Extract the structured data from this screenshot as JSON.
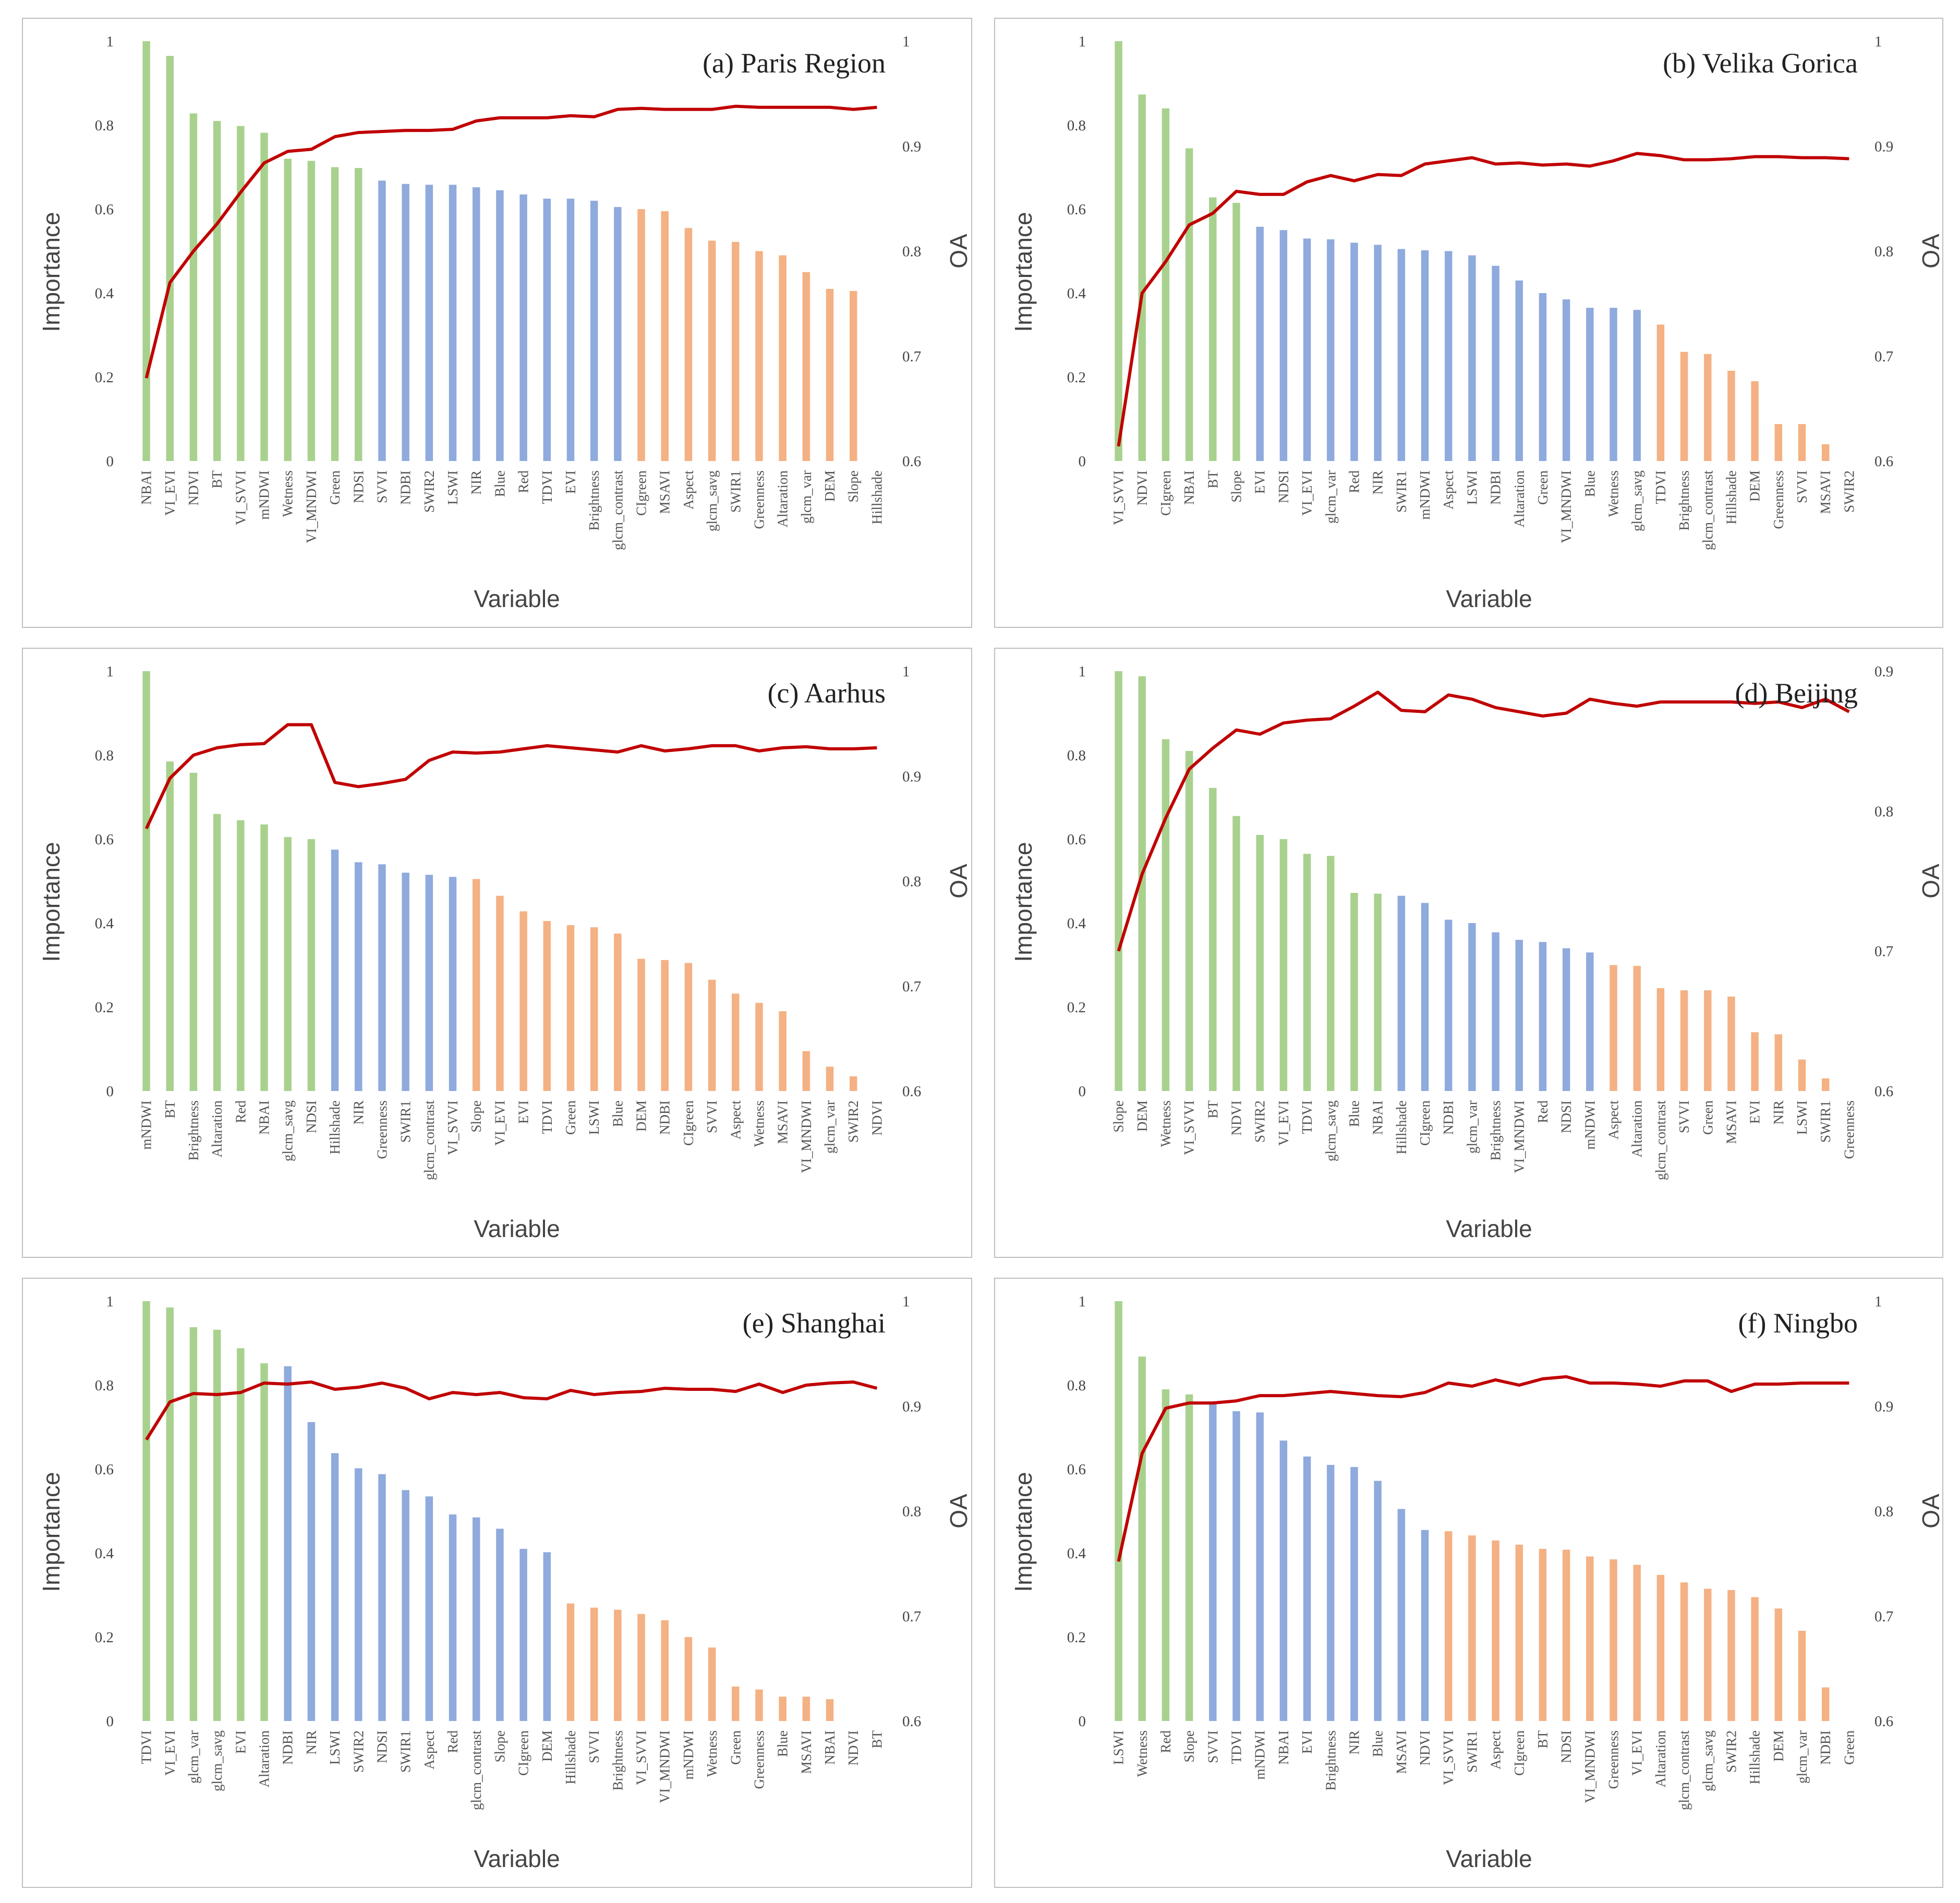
{
  "colors": {
    "group1": "#a9d18e",
    "group2": "#8faadc",
    "group3": "#f4b183",
    "oa_line": "#c00000",
    "frame": "#bfbfbf"
  },
  "chart_data": [
    {
      "type": "bar",
      "title": "(a) Paris Region",
      "xlabel": "Variable",
      "ylabel": "Importance",
      "y2label": "OA",
      "ylim": [
        0,
        1
      ],
      "y2lim": [
        0.6,
        1
      ],
      "yticks": [
        "0",
        "0.2",
        "0.4",
        "0.6",
        "0.8",
        "1"
      ],
      "y2ticks": [
        "0.6",
        "0.7",
        "0.8",
        "0.9",
        "1"
      ],
      "categories": [
        "NBAI",
        "VI_EVI",
        "NDVI",
        "BT",
        "VI_SVVI",
        "mNDWI",
        "Wetness",
        "VI_MNDWI",
        "Green",
        "NDSI",
        "SVVI",
        "NDBI",
        "SWIR2",
        "LSWI",
        "NIR",
        "Blue",
        "Red",
        "TDVI",
        "EVI",
        "Brightness",
        "glcm_contrast",
        "CIgreen",
        "MSAVI",
        "Aspect",
        "glcm_savg",
        "SWIR1",
        "Greenness",
        "Altaration",
        "glcm_var",
        "DEM",
        "Slope",
        "Hillshade"
      ],
      "values": [
        1.0,
        0.965,
        0.828,
        0.81,
        0.798,
        0.782,
        0.72,
        0.715,
        0.7,
        0.698,
        0.668,
        0.66,
        0.658,
        0.658,
        0.652,
        0.645,
        0.635,
        0.625,
        0.625,
        0.62,
        0.605,
        0.6,
        0.595,
        0.555,
        0.525,
        0.522,
        0.5,
        0.49,
        0.45,
        0.41,
        0.405,
        0.0
      ],
      "groups": [
        1,
        1,
        1,
        1,
        1,
        1,
        1,
        1,
        1,
        1,
        2,
        2,
        2,
        2,
        2,
        2,
        2,
        2,
        2,
        2,
        2,
        3,
        3,
        3,
        3,
        3,
        3,
        3,
        3,
        3,
        3,
        3
      ],
      "oa": [
        0.679,
        0.77,
        0.8,
        0.826,
        0.856,
        0.884,
        0.895,
        0.897,
        0.909,
        0.913,
        0.914,
        0.915,
        0.915,
        0.916,
        0.924,
        0.927,
        0.927,
        0.927,
        0.929,
        0.928,
        0.935,
        0.936,
        0.935,
        0.935,
        0.935,
        0.938,
        0.937,
        0.937,
        0.937,
        0.937,
        0.935,
        0.937
      ]
    },
    {
      "type": "bar",
      "title": "(b) Velika Gorica",
      "xlabel": "Variable",
      "ylabel": "Importance",
      "y2label": "OA",
      "ylim": [
        0,
        1
      ],
      "y2lim": [
        0.6,
        1
      ],
      "yticks": [
        "0",
        "0.2",
        "0.4",
        "0.6",
        "0.8",
        "1"
      ],
      "y2ticks": [
        "0.6",
        "0.7",
        "0.8",
        "0.9",
        "1"
      ],
      "categories": [
        "VI_SVVI",
        "NDVI",
        "CIgreen",
        "NBAI",
        "BT",
        "Slope",
        "EVI",
        "NDSI",
        "VI_EVI",
        "glcm_var",
        "Red",
        "NIR",
        "SWIR1",
        "mNDWI",
        "Aspect",
        "LSWI",
        "NDBI",
        "Altaration",
        "Green",
        "VI_MNDWI",
        "Blue",
        "Wetness",
        "glcm_savg",
        "TDVI",
        "Brightness",
        "glcm_contrast",
        "Hillshade",
        "DEM",
        "Greenness",
        "SVVI",
        "MSAVI",
        "SWIR2"
      ],
      "values": [
        1.0,
        0.873,
        0.84,
        0.745,
        0.628,
        0.615,
        0.558,
        0.55,
        0.53,
        0.528,
        0.52,
        0.515,
        0.505,
        0.502,
        0.5,
        0.49,
        0.465,
        0.43,
        0.4,
        0.385,
        0.365,
        0.365,
        0.36,
        0.325,
        0.26,
        0.255,
        0.215,
        0.19,
        0.088,
        0.088,
        0.04,
        0.0
      ],
      "groups": [
        1,
        1,
        1,
        1,
        1,
        1,
        2,
        2,
        2,
        2,
        2,
        2,
        2,
        2,
        2,
        2,
        2,
        2,
        2,
        2,
        2,
        2,
        2,
        3,
        3,
        3,
        3,
        3,
        3,
        3,
        3,
        3
      ],
      "oa": [
        0.614,
        0.76,
        0.79,
        0.825,
        0.836,
        0.857,
        0.854,
        0.854,
        0.866,
        0.872,
        0.867,
        0.873,
        0.872,
        0.883,
        0.886,
        0.889,
        0.883,
        0.884,
        0.882,
        0.883,
        0.881,
        0.886,
        0.893,
        0.891,
        0.887,
        0.887,
        0.888,
        0.89,
        0.89,
        0.889,
        0.889,
        0.888
      ]
    },
    {
      "type": "bar",
      "title": "(c) Aarhus",
      "xlabel": "Variable",
      "ylabel": "Importance",
      "y2label": "OA",
      "ylim": [
        0,
        1
      ],
      "y2lim": [
        0.6,
        1
      ],
      "yticks": [
        "0",
        "0.2",
        "0.4",
        "0.6",
        "0.8",
        "1"
      ],
      "y2ticks": [
        "0.6",
        "0.7",
        "0.8",
        "0.9",
        "1"
      ],
      "categories": [
        "mNDWI",
        "BT",
        "Brightness",
        "Altaration",
        "Red",
        "NBAI",
        "glcm_savg",
        "NDSI",
        "Hillshade",
        "NIR",
        "Greenness",
        "SWIR1",
        "glcm_contrast",
        "VI_SVVI",
        "Slope",
        "VI_EVI",
        "EVI",
        "TDVI",
        "Green",
        "LSWI",
        "Blue",
        "DEM",
        "NDBI",
        "CIgreen",
        "SVVI",
        "Aspect",
        "Wetness",
        "MSAVI",
        "VI_MNDWI",
        "glcm_var",
        "SWIR2",
        "NDVI"
      ],
      "values": [
        1.0,
        0.785,
        0.758,
        0.66,
        0.645,
        0.635,
        0.605,
        0.6,
        0.575,
        0.545,
        0.54,
        0.52,
        0.515,
        0.51,
        0.505,
        0.465,
        0.428,
        0.405,
        0.395,
        0.39,
        0.375,
        0.315,
        0.312,
        0.305,
        0.265,
        0.232,
        0.21,
        0.19,
        0.095,
        0.058,
        0.035,
        0.0
      ],
      "groups": [
        1,
        1,
        1,
        1,
        1,
        1,
        1,
        1,
        2,
        2,
        2,
        2,
        2,
        2,
        3,
        3,
        3,
        3,
        3,
        3,
        3,
        3,
        3,
        3,
        3,
        3,
        3,
        3,
        3,
        3,
        3,
        3
      ],
      "oa": [
        0.85,
        0.898,
        0.92,
        0.927,
        0.93,
        0.931,
        0.949,
        0.949,
        0.894,
        0.89,
        0.893,
        0.897,
        0.915,
        0.923,
        0.922,
        0.923,
        0.926,
        0.929,
        0.927,
        0.925,
        0.923,
        0.929,
        0.924,
        0.926,
        0.929,
        0.929,
        0.924,
        0.927,
        0.928,
        0.926,
        0.926,
        0.927
      ]
    },
    {
      "type": "bar",
      "title": "(d) Beijing",
      "xlabel": "Variable",
      "ylabel": "Importance",
      "y2label": "OA",
      "ylim": [
        0,
        1
      ],
      "y2lim": [
        0.6,
        0.9
      ],
      "yticks": [
        "0",
        "0.2",
        "0.4",
        "0.6",
        "0.8",
        "1"
      ],
      "y2ticks": [
        "0.6",
        "0.7",
        "0.8",
        "0.9"
      ],
      "categories": [
        "Slope",
        "DEM",
        "Wetness",
        "VI_SVVI",
        "BT",
        "NDVI",
        "SWIR2",
        "VI_EVI",
        "TDVI",
        "glcm_savg",
        "Blue",
        "NBAI",
        "Hillshade",
        "CIgreen",
        "NDBI",
        "glcm_var",
        "Brightness",
        "VI_MNDWI",
        "Red",
        "NDSI",
        "mNDWI",
        "Aspect",
        "Altaration",
        "glcm_contrast",
        "SVVI",
        "Green",
        "MSAVI",
        "EVI",
        "NIR",
        "LSWI",
        "SWIR1",
        "Greenness"
      ],
      "values": [
        1.0,
        0.988,
        0.838,
        0.81,
        0.722,
        0.655,
        0.61,
        0.6,
        0.565,
        0.56,
        0.472,
        0.47,
        0.465,
        0.448,
        0.408,
        0.4,
        0.378,
        0.36,
        0.355,
        0.34,
        0.33,
        0.3,
        0.298,
        0.245,
        0.24,
        0.24,
        0.225,
        0.14,
        0.135,
        0.075,
        0.03,
        0.0
      ],
      "groups": [
        1,
        1,
        1,
        1,
        1,
        1,
        1,
        1,
        1,
        1,
        1,
        1,
        2,
        2,
        2,
        2,
        2,
        2,
        2,
        2,
        2,
        3,
        3,
        3,
        3,
        3,
        3,
        3,
        3,
        3,
        3,
        3
      ],
      "oa": [
        0.7,
        0.755,
        0.795,
        0.83,
        0.845,
        0.858,
        0.855,
        0.863,
        0.865,
        0.866,
        0.875,
        0.885,
        0.872,
        0.871,
        0.883,
        0.88,
        0.874,
        0.871,
        0.868,
        0.87,
        0.88,
        0.877,
        0.875,
        0.878,
        0.878,
        0.878,
        0.878,
        0.877,
        0.878,
        0.874,
        0.88,
        0.871
      ]
    },
    {
      "type": "bar",
      "title": "(e) Shanghai",
      "xlabel": "Variable",
      "ylabel": "Importance",
      "y2label": "OA",
      "ylim": [
        0,
        1
      ],
      "y2lim": [
        0.6,
        1
      ],
      "yticks": [
        "0",
        "0.2",
        "0.4",
        "0.6",
        "0.8",
        "1"
      ],
      "y2ticks": [
        "0.6",
        "0.7",
        "0.8",
        "0.9",
        "1"
      ],
      "categories": [
        "TDVI",
        "VI_EVI",
        "glcm_var",
        "glcm_savg",
        "EVI",
        "Altaration",
        "NDBI",
        "NIR",
        "LSWI",
        "SWIR2",
        "NDSI",
        "SWIR1",
        "Aspect",
        "Red",
        "glcm_contrast",
        "Slope",
        "CIgreen",
        "DEM",
        "Hillshade",
        "SVVI",
        "Brightness",
        "VI_SVVI",
        "VI_MNDWI",
        "mNDWI",
        "Wetness",
        "Green",
        "Greenness",
        "Blue",
        "MSAVI",
        "NBAI",
        "NDVI",
        "BT"
      ],
      "values": [
        1.0,
        0.985,
        0.938,
        0.932,
        0.888,
        0.852,
        0.845,
        0.712,
        0.638,
        0.602,
        0.588,
        0.55,
        0.535,
        0.492,
        0.485,
        0.458,
        0.41,
        0.402,
        0.28,
        0.27,
        0.265,
        0.255,
        0.24,
        0.2,
        0.175,
        0.082,
        0.075,
        0.058,
        0.058,
        0.052,
        0.0,
        0.0
      ],
      "groups": [
        1,
        1,
        1,
        1,
        1,
        1,
        2,
        2,
        2,
        2,
        2,
        2,
        2,
        2,
        2,
        2,
        2,
        2,
        3,
        3,
        3,
        3,
        3,
        3,
        3,
        3,
        3,
        3,
        3,
        3,
        3,
        3
      ],
      "oa": [
        0.868,
        0.904,
        0.912,
        0.911,
        0.913,
        0.922,
        0.921,
        0.923,
        0.916,
        0.918,
        0.922,
        0.917,
        0.907,
        0.913,
        0.911,
        0.913,
        0.908,
        0.907,
        0.915,
        0.911,
        0.913,
        0.914,
        0.917,
        0.916,
        0.916,
        0.914,
        0.921,
        0.913,
        0.92,
        0.922,
        0.923,
        0.917
      ]
    },
    {
      "type": "bar",
      "title": "(f) Ningbo",
      "xlabel": "Variable",
      "ylabel": "Importance",
      "y2label": "OA",
      "ylim": [
        0,
        1
      ],
      "y2lim": [
        0.6,
        1
      ],
      "yticks": [
        "0",
        "0.2",
        "0.4",
        "0.6",
        "0.8",
        "1"
      ],
      "y2ticks": [
        "0.6",
        "0.7",
        "0.8",
        "0.9",
        "1"
      ],
      "categories": [
        "LSWI",
        "Wetness",
        "Red",
        "Slope",
        "SVVI",
        "TDVI",
        "mNDWI",
        "NBAI",
        "EVI",
        "Brightness",
        "NIR",
        "Blue",
        "MSAVI",
        "NDVI",
        "VI_SVVI",
        "SWIR1",
        "Aspect",
        "CIgreen",
        "BT",
        "NDSI",
        "VI_MNDWI",
        "Greenness",
        "VI_EVI",
        "Altaration",
        "glcm_contrast",
        "glcm_savg",
        "SWIR2",
        "Hillshade",
        "DEM",
        "glcm_var",
        "NDBI",
        "Green"
      ],
      "values": [
        1.0,
        0.868,
        0.79,
        0.778,
        0.755,
        0.738,
        0.735,
        0.668,
        0.63,
        0.61,
        0.605,
        0.572,
        0.505,
        0.455,
        0.452,
        0.442,
        0.43,
        0.42,
        0.41,
        0.408,
        0.392,
        0.385,
        0.372,
        0.348,
        0.33,
        0.315,
        0.312,
        0.295,
        0.268,
        0.215,
        0.08,
        0.0
      ],
      "groups": [
        1,
        1,
        1,
        1,
        2,
        2,
        2,
        2,
        2,
        2,
        2,
        2,
        2,
        2,
        3,
        3,
        3,
        3,
        3,
        3,
        3,
        3,
        3,
        3,
        3,
        3,
        3,
        3,
        3,
        3,
        3,
        3
      ],
      "oa": [
        0.752,
        0.855,
        0.898,
        0.903,
        0.903,
        0.905,
        0.91,
        0.91,
        0.912,
        0.914,
        0.912,
        0.91,
        0.909,
        0.913,
        0.922,
        0.919,
        0.925,
        0.92,
        0.926,
        0.928,
        0.922,
        0.922,
        0.921,
        0.919,
        0.924,
        0.924,
        0.914,
        0.921,
        0.921,
        0.922,
        0.922,
        0.922
      ]
    }
  ]
}
